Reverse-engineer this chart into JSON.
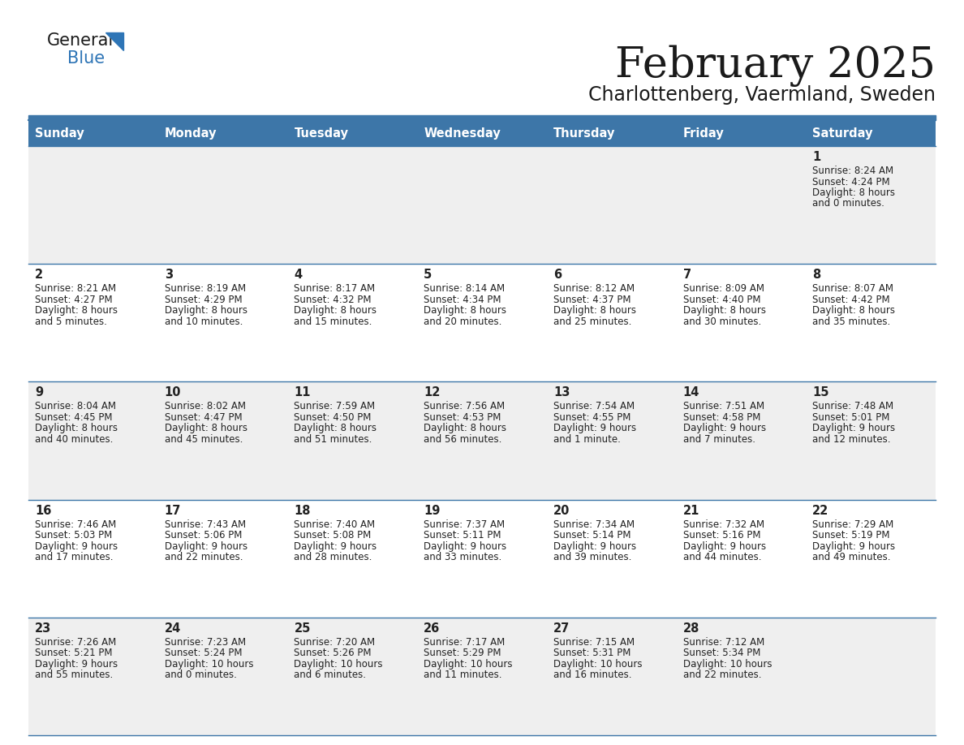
{
  "title": "February 2025",
  "subtitle": "Charlottenberg, Vaermland, Sweden",
  "header_bg_color": "#3D76A8",
  "header_text_color": "#FFFFFF",
  "day_names": [
    "Sunday",
    "Monday",
    "Tuesday",
    "Wednesday",
    "Thursday",
    "Friday",
    "Saturday"
  ],
  "row0_bg": "#EFEFEF",
  "row1_bg": "#FFFFFF",
  "row2_bg": "#EFEFEF",
  "row3_bg": "#FFFFFF",
  "row4_bg": "#EFEFEF",
  "cell_text_color": "#222222",
  "border_color": "#3D76A8",
  "days": [
    {
      "day": 1,
      "col": 6,
      "row": 0,
      "sunrise": "8:24 AM",
      "sunset": "4:24 PM",
      "daylight": "8 hours and 0 minutes."
    },
    {
      "day": 2,
      "col": 0,
      "row": 1,
      "sunrise": "8:21 AM",
      "sunset": "4:27 PM",
      "daylight": "8 hours and 5 minutes."
    },
    {
      "day": 3,
      "col": 1,
      "row": 1,
      "sunrise": "8:19 AM",
      "sunset": "4:29 PM",
      "daylight": "8 hours and 10 minutes."
    },
    {
      "day": 4,
      "col": 2,
      "row": 1,
      "sunrise": "8:17 AM",
      "sunset": "4:32 PM",
      "daylight": "8 hours and 15 minutes."
    },
    {
      "day": 5,
      "col": 3,
      "row": 1,
      "sunrise": "8:14 AM",
      "sunset": "4:34 PM",
      "daylight": "8 hours and 20 minutes."
    },
    {
      "day": 6,
      "col": 4,
      "row": 1,
      "sunrise": "8:12 AM",
      "sunset": "4:37 PM",
      "daylight": "8 hours and 25 minutes."
    },
    {
      "day": 7,
      "col": 5,
      "row": 1,
      "sunrise": "8:09 AM",
      "sunset": "4:40 PM",
      "daylight": "8 hours and 30 minutes."
    },
    {
      "day": 8,
      "col": 6,
      "row": 1,
      "sunrise": "8:07 AM",
      "sunset": "4:42 PM",
      "daylight": "8 hours and 35 minutes."
    },
    {
      "day": 9,
      "col": 0,
      "row": 2,
      "sunrise": "8:04 AM",
      "sunset": "4:45 PM",
      "daylight": "8 hours and 40 minutes."
    },
    {
      "day": 10,
      "col": 1,
      "row": 2,
      "sunrise": "8:02 AM",
      "sunset": "4:47 PM",
      "daylight": "8 hours and 45 minutes."
    },
    {
      "day": 11,
      "col": 2,
      "row": 2,
      "sunrise": "7:59 AM",
      "sunset": "4:50 PM",
      "daylight": "8 hours and 51 minutes."
    },
    {
      "day": 12,
      "col": 3,
      "row": 2,
      "sunrise": "7:56 AM",
      "sunset": "4:53 PM",
      "daylight": "8 hours and 56 minutes."
    },
    {
      "day": 13,
      "col": 4,
      "row": 2,
      "sunrise": "7:54 AM",
      "sunset": "4:55 PM",
      "daylight": "9 hours and 1 minute."
    },
    {
      "day": 14,
      "col": 5,
      "row": 2,
      "sunrise": "7:51 AM",
      "sunset": "4:58 PM",
      "daylight": "9 hours and 7 minutes."
    },
    {
      "day": 15,
      "col": 6,
      "row": 2,
      "sunrise": "7:48 AM",
      "sunset": "5:01 PM",
      "daylight": "9 hours and 12 minutes."
    },
    {
      "day": 16,
      "col": 0,
      "row": 3,
      "sunrise": "7:46 AM",
      "sunset": "5:03 PM",
      "daylight": "9 hours and 17 minutes."
    },
    {
      "day": 17,
      "col": 1,
      "row": 3,
      "sunrise": "7:43 AM",
      "sunset": "5:06 PM",
      "daylight": "9 hours and 22 minutes."
    },
    {
      "day": 18,
      "col": 2,
      "row": 3,
      "sunrise": "7:40 AM",
      "sunset": "5:08 PM",
      "daylight": "9 hours and 28 minutes."
    },
    {
      "day": 19,
      "col": 3,
      "row": 3,
      "sunrise": "7:37 AM",
      "sunset": "5:11 PM",
      "daylight": "9 hours and 33 minutes."
    },
    {
      "day": 20,
      "col": 4,
      "row": 3,
      "sunrise": "7:34 AM",
      "sunset": "5:14 PM",
      "daylight": "9 hours and 39 minutes."
    },
    {
      "day": 21,
      "col": 5,
      "row": 3,
      "sunrise": "7:32 AM",
      "sunset": "5:16 PM",
      "daylight": "9 hours and 44 minutes."
    },
    {
      "day": 22,
      "col": 6,
      "row": 3,
      "sunrise": "7:29 AM",
      "sunset": "5:19 PM",
      "daylight": "9 hours and 49 minutes."
    },
    {
      "day": 23,
      "col": 0,
      "row": 4,
      "sunrise": "7:26 AM",
      "sunset": "5:21 PM",
      "daylight": "9 hours and 55 minutes."
    },
    {
      "day": 24,
      "col": 1,
      "row": 4,
      "sunrise": "7:23 AM",
      "sunset": "5:24 PM",
      "daylight": "10 hours and 0 minutes."
    },
    {
      "day": 25,
      "col": 2,
      "row": 4,
      "sunrise": "7:20 AM",
      "sunset": "5:26 PM",
      "daylight": "10 hours and 6 minutes."
    },
    {
      "day": 26,
      "col": 3,
      "row": 4,
      "sunrise": "7:17 AM",
      "sunset": "5:29 PM",
      "daylight": "10 hours and 11 minutes."
    },
    {
      "day": 27,
      "col": 4,
      "row": 4,
      "sunrise": "7:15 AM",
      "sunset": "5:31 PM",
      "daylight": "10 hours and 16 minutes."
    },
    {
      "day": 28,
      "col": 5,
      "row": 4,
      "sunrise": "7:12 AM",
      "sunset": "5:34 PM",
      "daylight": "10 hours and 22 minutes."
    }
  ],
  "row_bg_colors": [
    "#EFEFEF",
    "#FFFFFF",
    "#EFEFEF",
    "#FFFFFF",
    "#EFEFEF"
  ],
  "logo_general_color": "#1a1a1a",
  "logo_blue_color": "#2E75B6",
  "logo_triangle_color": "#2E75B6"
}
